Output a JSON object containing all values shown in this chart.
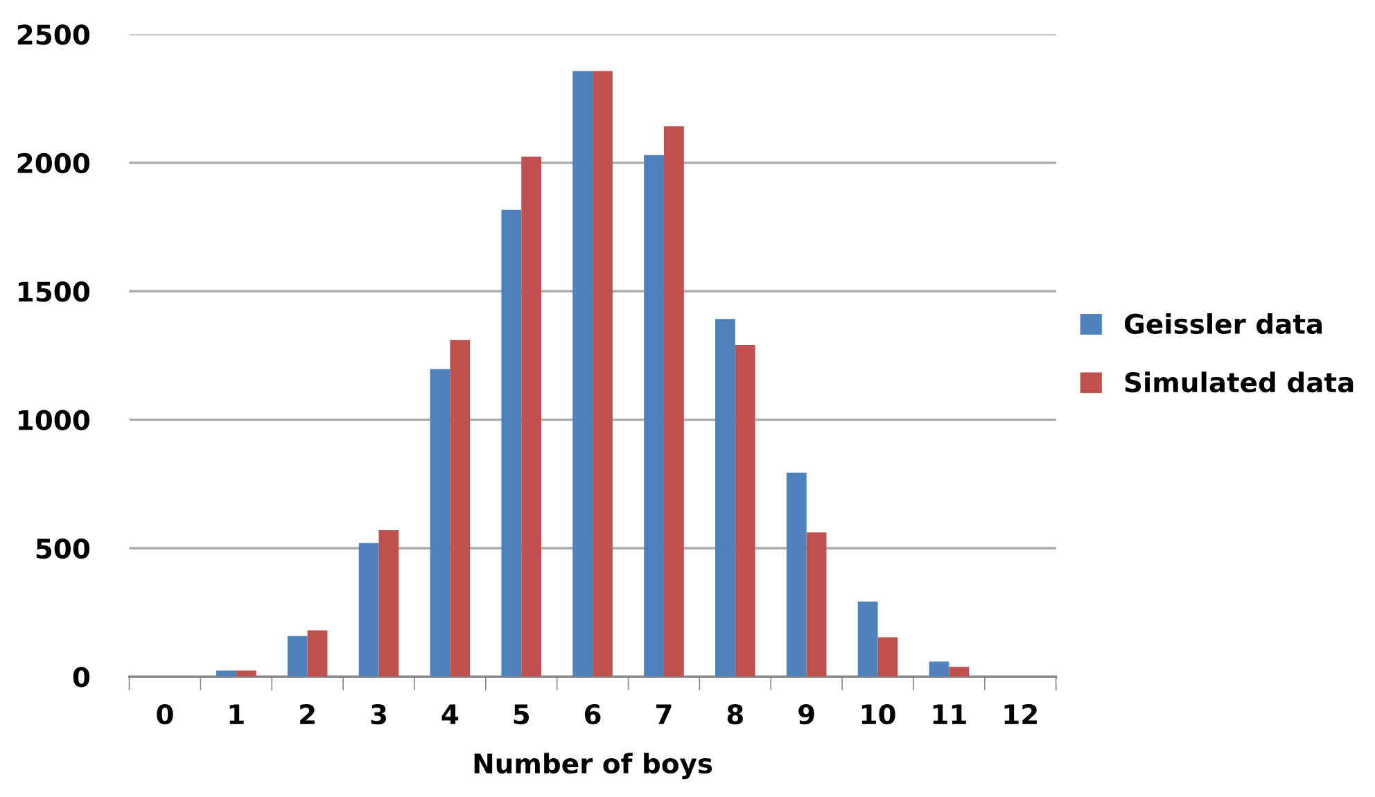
{
  "chart_data": {
    "type": "bar",
    "xlabel": "Number of boys",
    "categories": [
      "0",
      "1",
      "2",
      "3",
      "4",
      "5",
      "6",
      "7",
      "8",
      "9",
      "10",
      "11",
      "12"
    ],
    "series": [
      {
        "name": "Geissler data",
        "color": "#4f81bd",
        "values": [
          0,
          24,
          158,
          520,
          1197,
          1817,
          2357,
          2030,
          1392,
          794,
          292,
          59,
          0
        ]
      },
      {
        "name": "Simulated data",
        "color": "#c0504d",
        "values": [
          0,
          24,
          180,
          570,
          1310,
          2024,
          2357,
          2142,
          1290,
          561,
          153,
          38,
          0
        ]
      }
    ],
    "ylim": [
      0,
      2500
    ],
    "yticks": [
      0,
      500,
      1000,
      1500,
      2000,
      2500
    ],
    "grid": "y",
    "legend": "right"
  }
}
